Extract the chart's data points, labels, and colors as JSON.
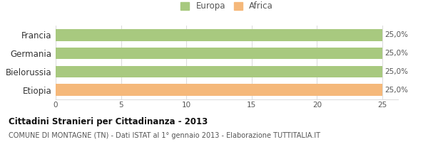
{
  "categories": [
    "Francia",
    "Germania",
    "Bielorussia",
    "Etiopia"
  ],
  "values": [
    25.0,
    25.0,
    25.0,
    25.0
  ],
  "bar_colors": [
    "#a8c97f",
    "#a8c97f",
    "#a8c97f",
    "#f5b87a"
  ],
  "bar_labels": [
    "25,0%",
    "25,0%",
    "25,0%",
    "25,0%"
  ],
  "xlim": [
    0,
    25
  ],
  "xticks": [
    0,
    5,
    10,
    15,
    20,
    25
  ],
  "legend_labels": [
    "Europa",
    "Africa"
  ],
  "legend_colors": [
    "#a8c97f",
    "#f5b87a"
  ],
  "title": "Cittadini Stranieri per Cittadinanza - 2013",
  "subtitle": "COMUNE DI MONTAGNE (TN) - Dati ISTAT al 1° gennaio 2013 - Elaborazione TUTTITALIA.IT",
  "title_fontsize": 8.5,
  "subtitle_fontsize": 7.0,
  "bar_label_fontsize": 7.5,
  "tick_fontsize": 7.5,
  "legend_fontsize": 8.5,
  "background_color": "#ffffff",
  "grid_color": "#dddddd",
  "category_fontsize": 8.5
}
